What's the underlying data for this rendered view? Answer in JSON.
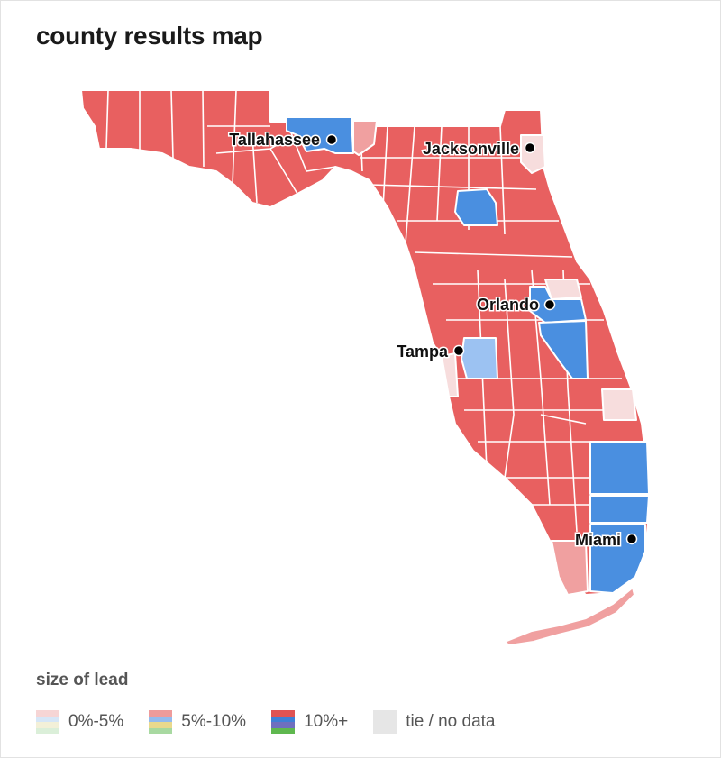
{
  "title": "county results map",
  "legend": {
    "title": "size of lead",
    "items": [
      {
        "label": "0%-5%",
        "colors": [
          "#f6d5d5",
          "#d6e6f7",
          "#f3f0d8",
          "#dbefd9"
        ]
      },
      {
        "label": "5%-10%",
        "colors": [
          "#ee9b9b",
          "#94bbee",
          "#e9d98d",
          "#a8d9a1"
        ]
      },
      {
        "label": "10%+",
        "colors": [
          "#e05353",
          "#3f7fd6",
          "#6f6fbf",
          "#5fb84f"
        ]
      },
      {
        "label": "tie / no data",
        "colors": [
          "#e6e6e6"
        ]
      }
    ]
  },
  "colors": {
    "rep_strong": "#e86060",
    "rep_mid": "#f0a0a0",
    "rep_light": "#f7dddd",
    "dem_strong": "#4a8fe0",
    "dem_light": "#9cc2f2"
  },
  "cities": [
    {
      "name": "Tallahassee"
    },
    {
      "name": "Jacksonville"
    },
    {
      "name": "Orlando"
    },
    {
      "name": "Tampa"
    },
    {
      "name": "Miami"
    }
  ]
}
